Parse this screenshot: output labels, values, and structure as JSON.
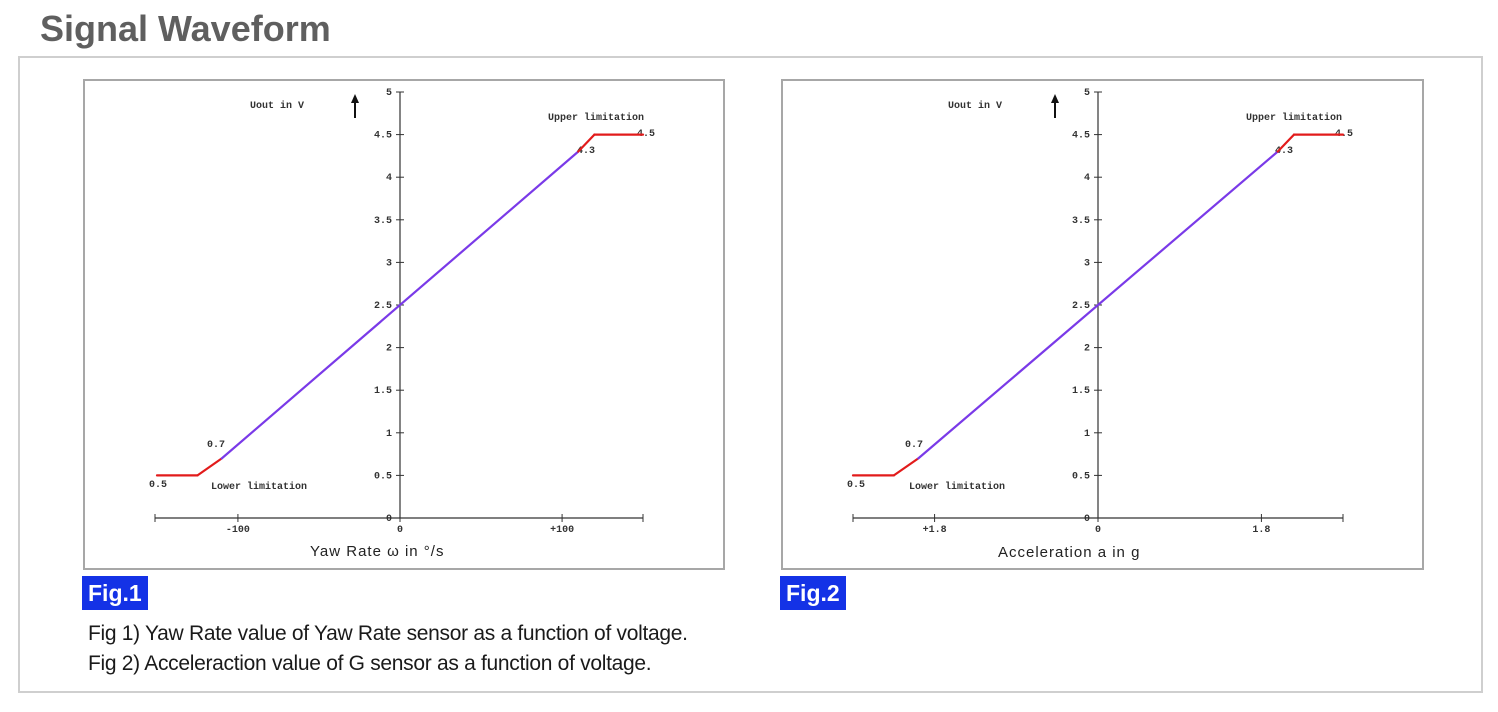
{
  "heading": "Signal Waveform",
  "colors": {
    "limit_segment": "#e21b1b",
    "linear_segment": "#7a3ae8",
    "badge": "#1432e6"
  },
  "figures": [
    {
      "badge": "Fig.1",
      "axis_x_label": "Yaw Rate ω in °/s",
      "axis_y_label": "Uout in V",
      "y_ticks": [
        "5",
        "4.5",
        "4",
        "3.5",
        "3",
        "2.5",
        "2",
        "1.5",
        "1",
        "0.5",
        "0"
      ],
      "x_ticks": [
        "-100",
        "0",
        "+100"
      ],
      "upper_label": "Upper limitation",
      "lower_label": "Lower limitation",
      "ann_45": "4.5",
      "ann_42": "4.3",
      "ann_07": "0.7",
      "ann_05": "0.5",
      "chart_data": {
        "type": "line",
        "ylim": [
          0,
          5
        ],
        "series": [
          {
            "x": [
              -150,
              -125,
              -110,
              110,
              120,
              150
            ],
            "y": [
              0.5,
              0.5,
              0.7,
              4.3,
              4.5,
              4.5
            ]
          }
        ]
      }
    },
    {
      "badge": "Fig.2",
      "axis_x_label": "Acceleration a in g",
      "axis_y_label": "Uout in V",
      "y_ticks": [
        "5",
        "4.5",
        "4",
        "3.5",
        "3",
        "2.5",
        "2",
        "1.5",
        "1",
        "0.5",
        "0"
      ],
      "x_ticks": [
        "+1.8",
        "0",
        "1.8"
      ],
      "upper_label": "Upper limitation",
      "lower_label": "Lower limitation",
      "ann_45": "4.5",
      "ann_42": "4.3",
      "ann_07": "0.7",
      "ann_05": "0.5",
      "chart_data": {
        "type": "line",
        "ylim": [
          0,
          5
        ],
        "series": [
          {
            "x": [
              -2.7,
              -2.25,
              -1.98,
              1.98,
              2.16,
              2.7
            ],
            "y": [
              0.5,
              0.5,
              0.7,
              4.3,
              4.5,
              4.5
            ]
          }
        ]
      }
    }
  ],
  "captions": [
    "Fig 1) Yaw Rate value of Yaw Rate sensor as a function of voltage.",
    "Fig 2) Acceleraction value of G sensor as a function of voltage."
  ]
}
